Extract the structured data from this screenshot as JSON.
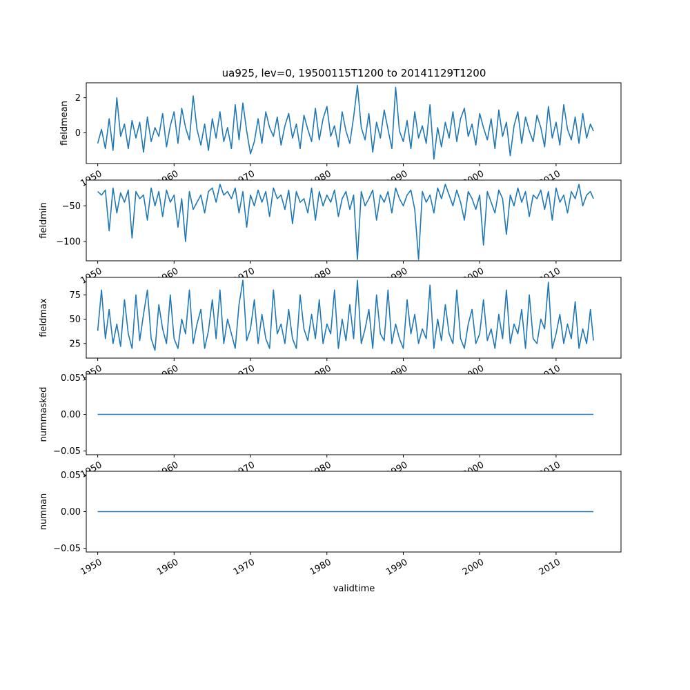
{
  "chart_data": {
    "type": "line",
    "title": "ua925, lev=0, 19500115T1200 to 20141129T1200",
    "xlabel": "validtime",
    "xlim": [
      1948.5,
      2018.5
    ],
    "xticks": [
      1950,
      1960,
      1970,
      1980,
      1990,
      2000,
      2010
    ],
    "xticklabels": [
      "1950",
      "1960",
      "1970",
      "1980",
      "1990",
      "2000",
      "2010"
    ],
    "color": "#1f77b4",
    "grid": false,
    "panels": [
      {
        "ylabel": "fieldmean",
        "ylim": [
          -1.75,
          2.85
        ],
        "yticks": [
          -0.0001,
          0,
          2
        ],
        "yticklabels": [
          "",
          "0",
          "2"
        ],
        "x": [
          1950.0,
          1950.5,
          1951.0,
          1951.5,
          1952.0,
          1952.5,
          1953.0,
          1953.5,
          1954.0,
          1954.5,
          1955.0,
          1955.5,
          1956.0,
          1956.5,
          1957.0,
          1957.5,
          1958.0,
          1958.5,
          1959.0,
          1959.5,
          1960.0,
          1960.5,
          1961.0,
          1961.5,
          1962.0,
          1962.5,
          1963.0,
          1963.5,
          1964.0,
          1964.5,
          1965.0,
          1965.5,
          1966.0,
          1966.5,
          1967.0,
          1967.5,
          1968.0,
          1968.5,
          1969.0,
          1969.5,
          1970.0,
          1970.5,
          1971.0,
          1971.5,
          1972.0,
          1972.5,
          1973.0,
          1973.5,
          1974.0,
          1974.5,
          1975.0,
          1975.5,
          1976.0,
          1976.5,
          1977.0,
          1977.5,
          1978.0,
          1978.5,
          1979.0,
          1979.5,
          1980.0,
          1980.5,
          1981.0,
          1981.5,
          1982.0,
          1982.5,
          1983.0,
          1983.5,
          1984.0,
          1984.5,
          1985.0,
          1985.5,
          1986.0,
          1986.5,
          1987.0,
          1987.5,
          1988.0,
          1988.5,
          1989.0,
          1989.5,
          1990.0,
          1990.5,
          1991.0,
          1991.5,
          1992.0,
          1992.5,
          1993.0,
          1993.5,
          1994.0,
          1994.5,
          1995.0,
          1995.5,
          1996.0,
          1996.5,
          1997.0,
          1997.5,
          1998.0,
          1998.5,
          1999.0,
          1999.5,
          2000.0,
          2000.5,
          2001.0,
          2001.5,
          2002.0,
          2002.5,
          2003.0,
          2003.5,
          2004.0,
          2004.5,
          2005.0,
          2005.5,
          2006.0,
          2006.5,
          2007.0,
          2007.5,
          2008.0,
          2008.5,
          2009.0,
          2009.5,
          2010.0,
          2010.5,
          2011.0,
          2011.5,
          2012.0,
          2012.5,
          2013.0,
          2013.5,
          2014.0,
          2014.5,
          2014.9
        ],
        "y": [
          -0.6,
          0.2,
          -0.9,
          0.8,
          -1.0,
          2.0,
          -0.2,
          0.5,
          -0.9,
          0.7,
          -0.3,
          0.6,
          -1.1,
          0.9,
          -0.5,
          0.3,
          -0.2,
          1.1,
          -0.8,
          0.4,
          1.2,
          -0.6,
          1.4,
          0.3,
          -0.4,
          2.1,
          0.2,
          -0.7,
          0.5,
          -1.0,
          0.8,
          -0.3,
          1.2,
          -0.5,
          0.3,
          -0.9,
          1.6,
          -0.4,
          1.7,
          0.1,
          -1.2,
          -0.5,
          0.8,
          -0.6,
          1.2,
          0.3,
          -0.2,
          0.9,
          -0.7,
          0.4,
          1.1,
          -0.3,
          0.5,
          -0.9,
          1.0,
          0.2,
          -0.5,
          1.4,
          -0.4,
          0.8,
          1.5,
          -0.2,
          0.4,
          -0.8,
          1.2,
          0.1,
          -0.6,
          0.9,
          2.7,
          0.3,
          -0.4,
          1.1,
          -1.1,
          0.6,
          -0.3,
          1.3,
          0.2,
          -0.9,
          2.6,
          0.1,
          -0.5,
          0.7,
          -0.9,
          1.2,
          -0.3,
          0.4,
          -0.6,
          1.6,
          -1.5,
          0.3,
          -0.8,
          0.6,
          -0.3,
          1.2,
          -0.5,
          0.8,
          1.4,
          -0.2,
          0.5,
          -0.7,
          1.1,
          0.3,
          -0.4,
          0.8,
          -0.9,
          1.3,
          -0.2,
          0.6,
          -1.3,
          0.4,
          1.2,
          -0.6,
          0.9,
          0.1,
          -0.5,
          1.0,
          0.3,
          -0.8,
          1.5,
          -0.3,
          0.6,
          -0.7,
          1.6,
          0.2,
          -0.4,
          0.9,
          -0.6,
          1.1,
          -0.3,
          0.5,
          0.1
        ]
      },
      {
        "ylabel": "fieldmin",
        "ylim": [
          -127,
          -14
        ],
        "yticks": [
          -100,
          -50
        ],
        "yticklabels": [
          "−100",
          "−50"
        ],
        "x": [
          1950.0,
          1950.5,
          1951.0,
          1951.5,
          1952.0,
          1952.5,
          1953.0,
          1953.5,
          1954.0,
          1954.5,
          1955.0,
          1955.5,
          1956.0,
          1956.5,
          1957.0,
          1957.5,
          1958.0,
          1958.5,
          1959.0,
          1959.5,
          1960.0,
          1960.5,
          1961.0,
          1961.5,
          1962.0,
          1962.5,
          1963.0,
          1963.5,
          1964.0,
          1964.5,
          1965.0,
          1965.5,
          1966.0,
          1966.5,
          1967.0,
          1967.5,
          1968.0,
          1968.5,
          1969.0,
          1969.5,
          1970.0,
          1970.5,
          1971.0,
          1971.5,
          1972.0,
          1972.5,
          1973.0,
          1973.5,
          1974.0,
          1974.5,
          1975.0,
          1975.5,
          1976.0,
          1976.5,
          1977.0,
          1977.5,
          1978.0,
          1978.5,
          1979.0,
          1979.5,
          1980.0,
          1980.5,
          1981.0,
          1981.5,
          1982.0,
          1982.5,
          1983.0,
          1983.5,
          1984.0,
          1984.5,
          1985.0,
          1985.5,
          1986.0,
          1986.5,
          1987.0,
          1987.5,
          1988.0,
          1988.5,
          1989.0,
          1989.5,
          1990.0,
          1990.5,
          1991.0,
          1991.5,
          1992.0,
          1992.5,
          1993.0,
          1993.5,
          1994.0,
          1994.5,
          1995.0,
          1995.5,
          1996.0,
          1996.5,
          1997.0,
          1997.5,
          1998.0,
          1998.5,
          1999.0,
          1999.5,
          2000.0,
          2000.5,
          2001.0,
          2001.5,
          2002.0,
          2002.5,
          2003.0,
          2003.5,
          2004.0,
          2004.5,
          2005.0,
          2005.5,
          2006.0,
          2006.5,
          2007.0,
          2007.5,
          2008.0,
          2008.5,
          2009.0,
          2009.5,
          2010.0,
          2010.5,
          2011.0,
          2011.5,
          2012.0,
          2012.5,
          2013.0,
          2013.5,
          2014.0,
          2014.5,
          2014.9
        ],
        "y": [
          -30,
          -35,
          -28,
          -85,
          -25,
          -60,
          -32,
          -45,
          -28,
          -95,
          -30,
          -40,
          -35,
          -70,
          -25,
          -50,
          -30,
          -65,
          -28,
          -45,
          -35,
          -80,
          -40,
          -100,
          -30,
          -55,
          -45,
          -35,
          -60,
          -30,
          -25,
          -45,
          -20,
          -35,
          -30,
          -40,
          -25,
          -60,
          -30,
          -80,
          -35,
          -50,
          -28,
          -45,
          -30,
          -65,
          -25,
          -40,
          -35,
          -55,
          -28,
          -75,
          -30,
          -45,
          -40,
          -60,
          -25,
          -70,
          -30,
          -50,
          -35,
          -45,
          -28,
          -65,
          -40,
          -30,
          -55,
          -35,
          -125,
          -30,
          -50,
          -40,
          -28,
          -70,
          -35,
          -45,
          -30,
          -60,
          -25,
          -40,
          -50,
          -35,
          -28,
          -55,
          -125,
          -30,
          -45,
          -35,
          -60,
          -25,
          -40,
          -20,
          -35,
          -50,
          -28,
          -45,
          -70,
          -30,
          -40,
          -55,
          -35,
          -105,
          -30,
          -45,
          -60,
          -28,
          -40,
          -90,
          -35,
          -50,
          -25,
          -45,
          -30,
          -65,
          -35,
          -40,
          -28,
          -55,
          -30,
          -70,
          -25,
          -45,
          -35,
          -60,
          -30,
          -40,
          -20,
          -50,
          -35,
          -30,
          -40
        ]
      },
      {
        "ylabel": "fieldmax",
        "ylim": [
          10,
          93
        ],
        "yticks": [
          25,
          50,
          75
        ],
        "yticklabels": [
          "25",
          "50",
          "75"
        ],
        "x": [
          1950.0,
          1950.5,
          1951.0,
          1951.5,
          1952.0,
          1952.5,
          1953.0,
          1953.5,
          1954.0,
          1954.5,
          1955.0,
          1955.5,
          1956.0,
          1956.5,
          1957.0,
          1957.5,
          1958.0,
          1958.5,
          1959.0,
          1959.5,
          1960.0,
          1960.5,
          1961.0,
          1961.5,
          1962.0,
          1962.5,
          1963.0,
          1963.5,
          1964.0,
          1964.5,
          1965.0,
          1965.5,
          1966.0,
          1966.5,
          1967.0,
          1967.5,
          1968.0,
          1968.5,
          1969.0,
          1969.5,
          1970.0,
          1970.5,
          1971.0,
          1971.5,
          1972.0,
          1972.5,
          1973.0,
          1973.5,
          1974.0,
          1974.5,
          1975.0,
          1975.5,
          1976.0,
          1976.5,
          1977.0,
          1977.5,
          1978.0,
          1978.5,
          1979.0,
          1979.5,
          1980.0,
          1980.5,
          1981.0,
          1981.5,
          1982.0,
          1982.5,
          1983.0,
          1983.5,
          1984.0,
          1984.5,
          1985.0,
          1985.5,
          1986.0,
          1986.5,
          1987.0,
          1987.5,
          1988.0,
          1988.5,
          1989.0,
          1989.5,
          1990.0,
          1990.5,
          1991.0,
          1991.5,
          1992.0,
          1992.5,
          1993.0,
          1993.5,
          1994.0,
          1994.5,
          1995.0,
          1995.5,
          1996.0,
          1996.5,
          1997.0,
          1997.5,
          1998.0,
          1998.5,
          1999.0,
          1999.5,
          2000.0,
          2000.5,
          2001.0,
          2001.5,
          2002.0,
          2002.5,
          2003.0,
          2003.5,
          2004.0,
          2004.5,
          2005.0,
          2005.5,
          2006.0,
          2006.5,
          2007.0,
          2007.5,
          2008.0,
          2008.5,
          2009.0,
          2009.5,
          2010.0,
          2010.5,
          2011.0,
          2011.5,
          2012.0,
          2012.5,
          2013.0,
          2013.5,
          2014.0,
          2014.5,
          2014.9
        ],
        "y": [
          38,
          80,
          30,
          60,
          25,
          45,
          22,
          70,
          35,
          20,
          75,
          28,
          55,
          80,
          30,
          18,
          65,
          40,
          25,
          75,
          30,
          20,
          50,
          35,
          80,
          25,
          45,
          60,
          20,
          38,
          70,
          30,
          80,
          25,
          50,
          35,
          20,
          65,
          90,
          28,
          40,
          70,
          25,
          55,
          30,
          20,
          80,
          35,
          45,
          25,
          60,
          30,
          20,
          75,
          40,
          28,
          55,
          30,
          70,
          25,
          45,
          35,
          80,
          20,
          50,
          28,
          65,
          30,
          90,
          25,
          40,
          60,
          20,
          75,
          35,
          28,
          80,
          25,
          45,
          30,
          20,
          70,
          35,
          55,
          25,
          40,
          30,
          85,
          20,
          50,
          28,
          65,
          35,
          25,
          80,
          30,
          20,
          45,
          60,
          25,
          35,
          70,
          28,
          40,
          20,
          55,
          30,
          80,
          25,
          45,
          35,
          60,
          20,
          75,
          30,
          25,
          50,
          40,
          88,
          20,
          35,
          55,
          25,
          45,
          30,
          68,
          20,
          40,
          25,
          60,
          28
        ]
      },
      {
        "ylabel": "nummasked",
        "ylim": [
          -0.055,
          0.055
        ],
        "yticks": [
          -0.05,
          0.0,
          0.05
        ],
        "yticklabels": [
          "−0.05",
          "0.00",
          "0.05"
        ],
        "x": [
          1950.0,
          2014.9
        ],
        "y": [
          0,
          0
        ]
      },
      {
        "ylabel": "numnan",
        "ylim": [
          -0.055,
          0.055
        ],
        "yticks": [
          -0.05,
          0.0,
          0.05
        ],
        "yticklabels": [
          "−0.05",
          "0.00",
          "0.05"
        ],
        "x": [
          1950.0,
          2014.9
        ],
        "y": [
          0,
          0
        ]
      }
    ]
  }
}
